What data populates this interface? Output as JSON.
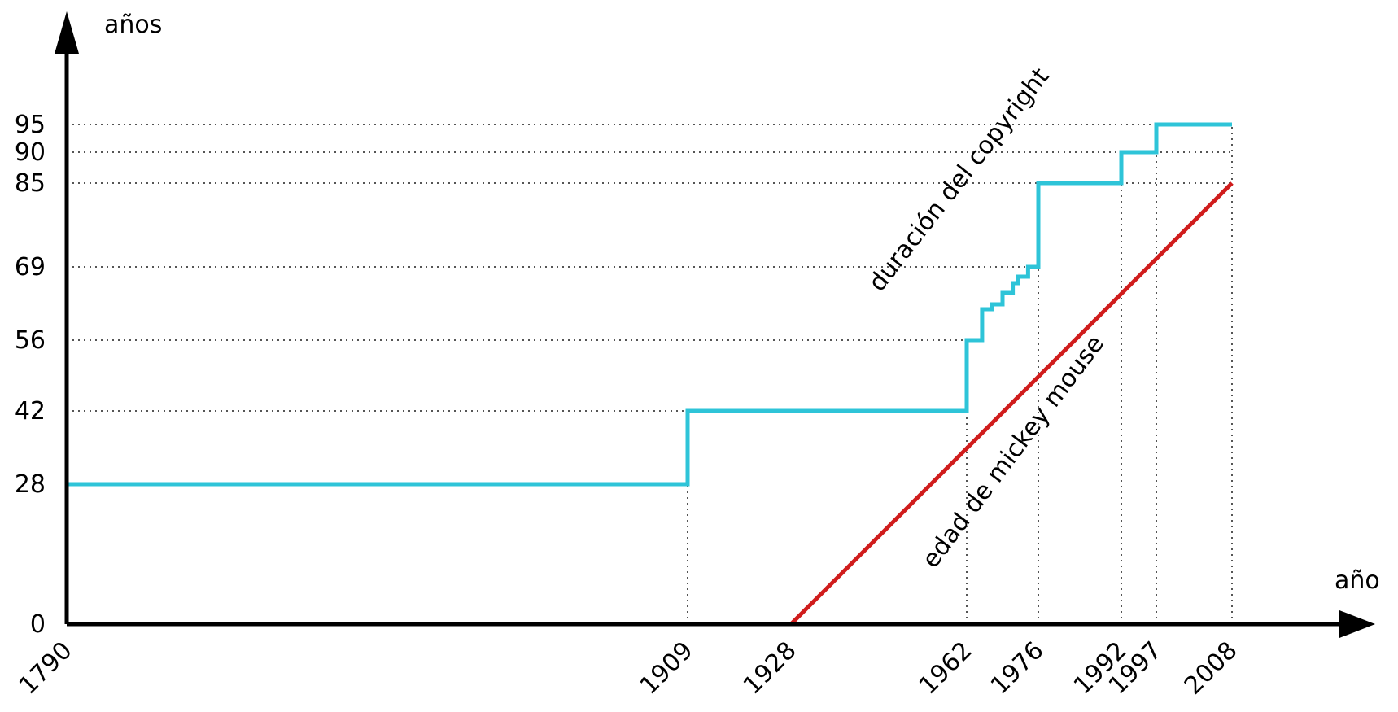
{
  "chart_data": {
    "type": "line",
    "title": "",
    "xlabel": "año",
    "ylabel": "años",
    "x_ticks": [
      1790,
      1909,
      1928,
      1962,
      1976,
      1992,
      1997,
      2008
    ],
    "y_ticks": [
      0,
      28,
      42,
      56,
      69,
      85,
      90,
      95
    ],
    "xlim": [
      1790,
      2008
    ],
    "ylim": [
      0,
      95
    ],
    "grid": "dotted guides at tick values",
    "series": [
      {
        "name": "duración del copyright",
        "color": "#2ec4d8",
        "step": true,
        "points": [
          [
            1790,
            0
          ],
          [
            1790,
            28
          ],
          [
            1909,
            28
          ],
          [
            1909,
            42
          ],
          [
            1962,
            42
          ],
          [
            1962,
            56
          ],
          [
            1965,
            56
          ],
          [
            1965,
            62
          ],
          [
            1967,
            62
          ],
          [
            1967,
            63
          ],
          [
            1969,
            63
          ],
          [
            1969,
            64
          ],
          [
            1971,
            64
          ],
          [
            1971,
            66
          ],
          [
            1972,
            66
          ],
          [
            1972,
            67
          ],
          [
            1974,
            67
          ],
          [
            1974,
            69
          ],
          [
            1976,
            69
          ],
          [
            1976,
            85
          ],
          [
            1992,
            85
          ],
          [
            1992,
            90
          ],
          [
            1997,
            90
          ],
          [
            1997,
            95
          ],
          [
            2008,
            95
          ]
        ]
      },
      {
        "name": "edad de mickey mouse",
        "color": "#d01c1c",
        "step": false,
        "points": [
          [
            1928,
            0
          ],
          [
            2008,
            85
          ]
        ]
      }
    ]
  }
}
